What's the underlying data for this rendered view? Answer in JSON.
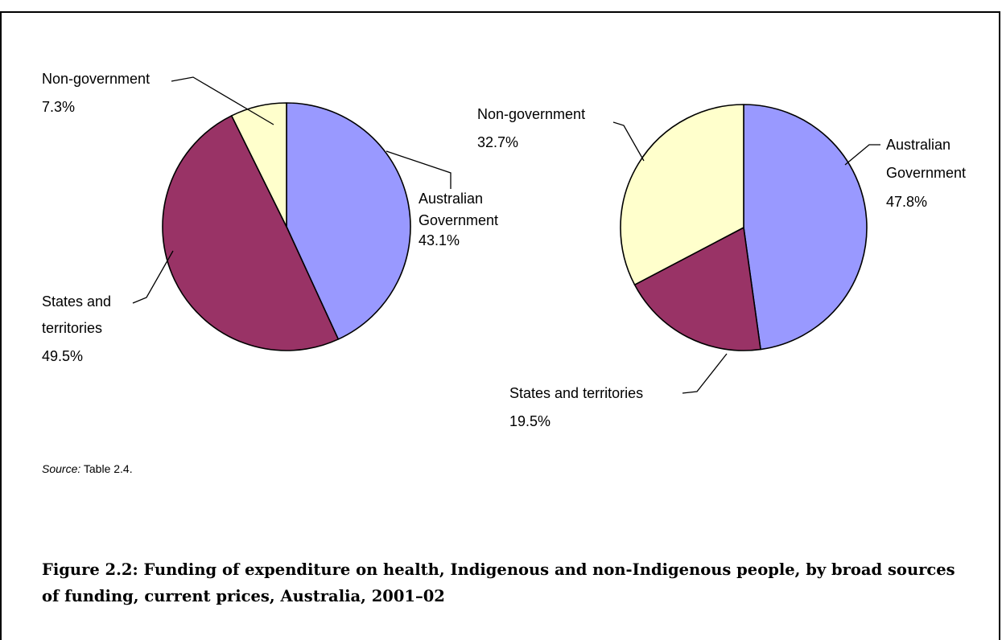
{
  "chart_data": [
    {
      "type": "pie",
      "slices": [
        {
          "label": "Australian Government",
          "value": 43.1,
          "pct_label": "43.1%",
          "color": "#9999ff"
        },
        {
          "label": "States and territories",
          "value": 49.5,
          "pct_label": "49.5%",
          "color": "#993366"
        },
        {
          "label": "Non-government",
          "value": 7.3,
          "pct_label": "7.3%",
          "color": "#ffffcc"
        }
      ]
    },
    {
      "type": "pie",
      "slices": [
        {
          "label": "Australian Government",
          "value": 47.8,
          "pct_label": "47.8%",
          "color": "#9999ff"
        },
        {
          "label": "States and territories",
          "value": 19.5,
          "pct_label": "19.5%",
          "color": "#993366"
        },
        {
          "label": "Non-government",
          "value": 32.7,
          "pct_label": "32.7%",
          "color": "#ffffcc"
        }
      ]
    }
  ],
  "source": {
    "prefix": "Source:",
    "text": " Table 2.4."
  },
  "caption": "Figure 2.2: Funding of expenditure on health, Indigenous and non-Indigenous people, by broad sources of funding, current prices, Australia, 2001–02"
}
